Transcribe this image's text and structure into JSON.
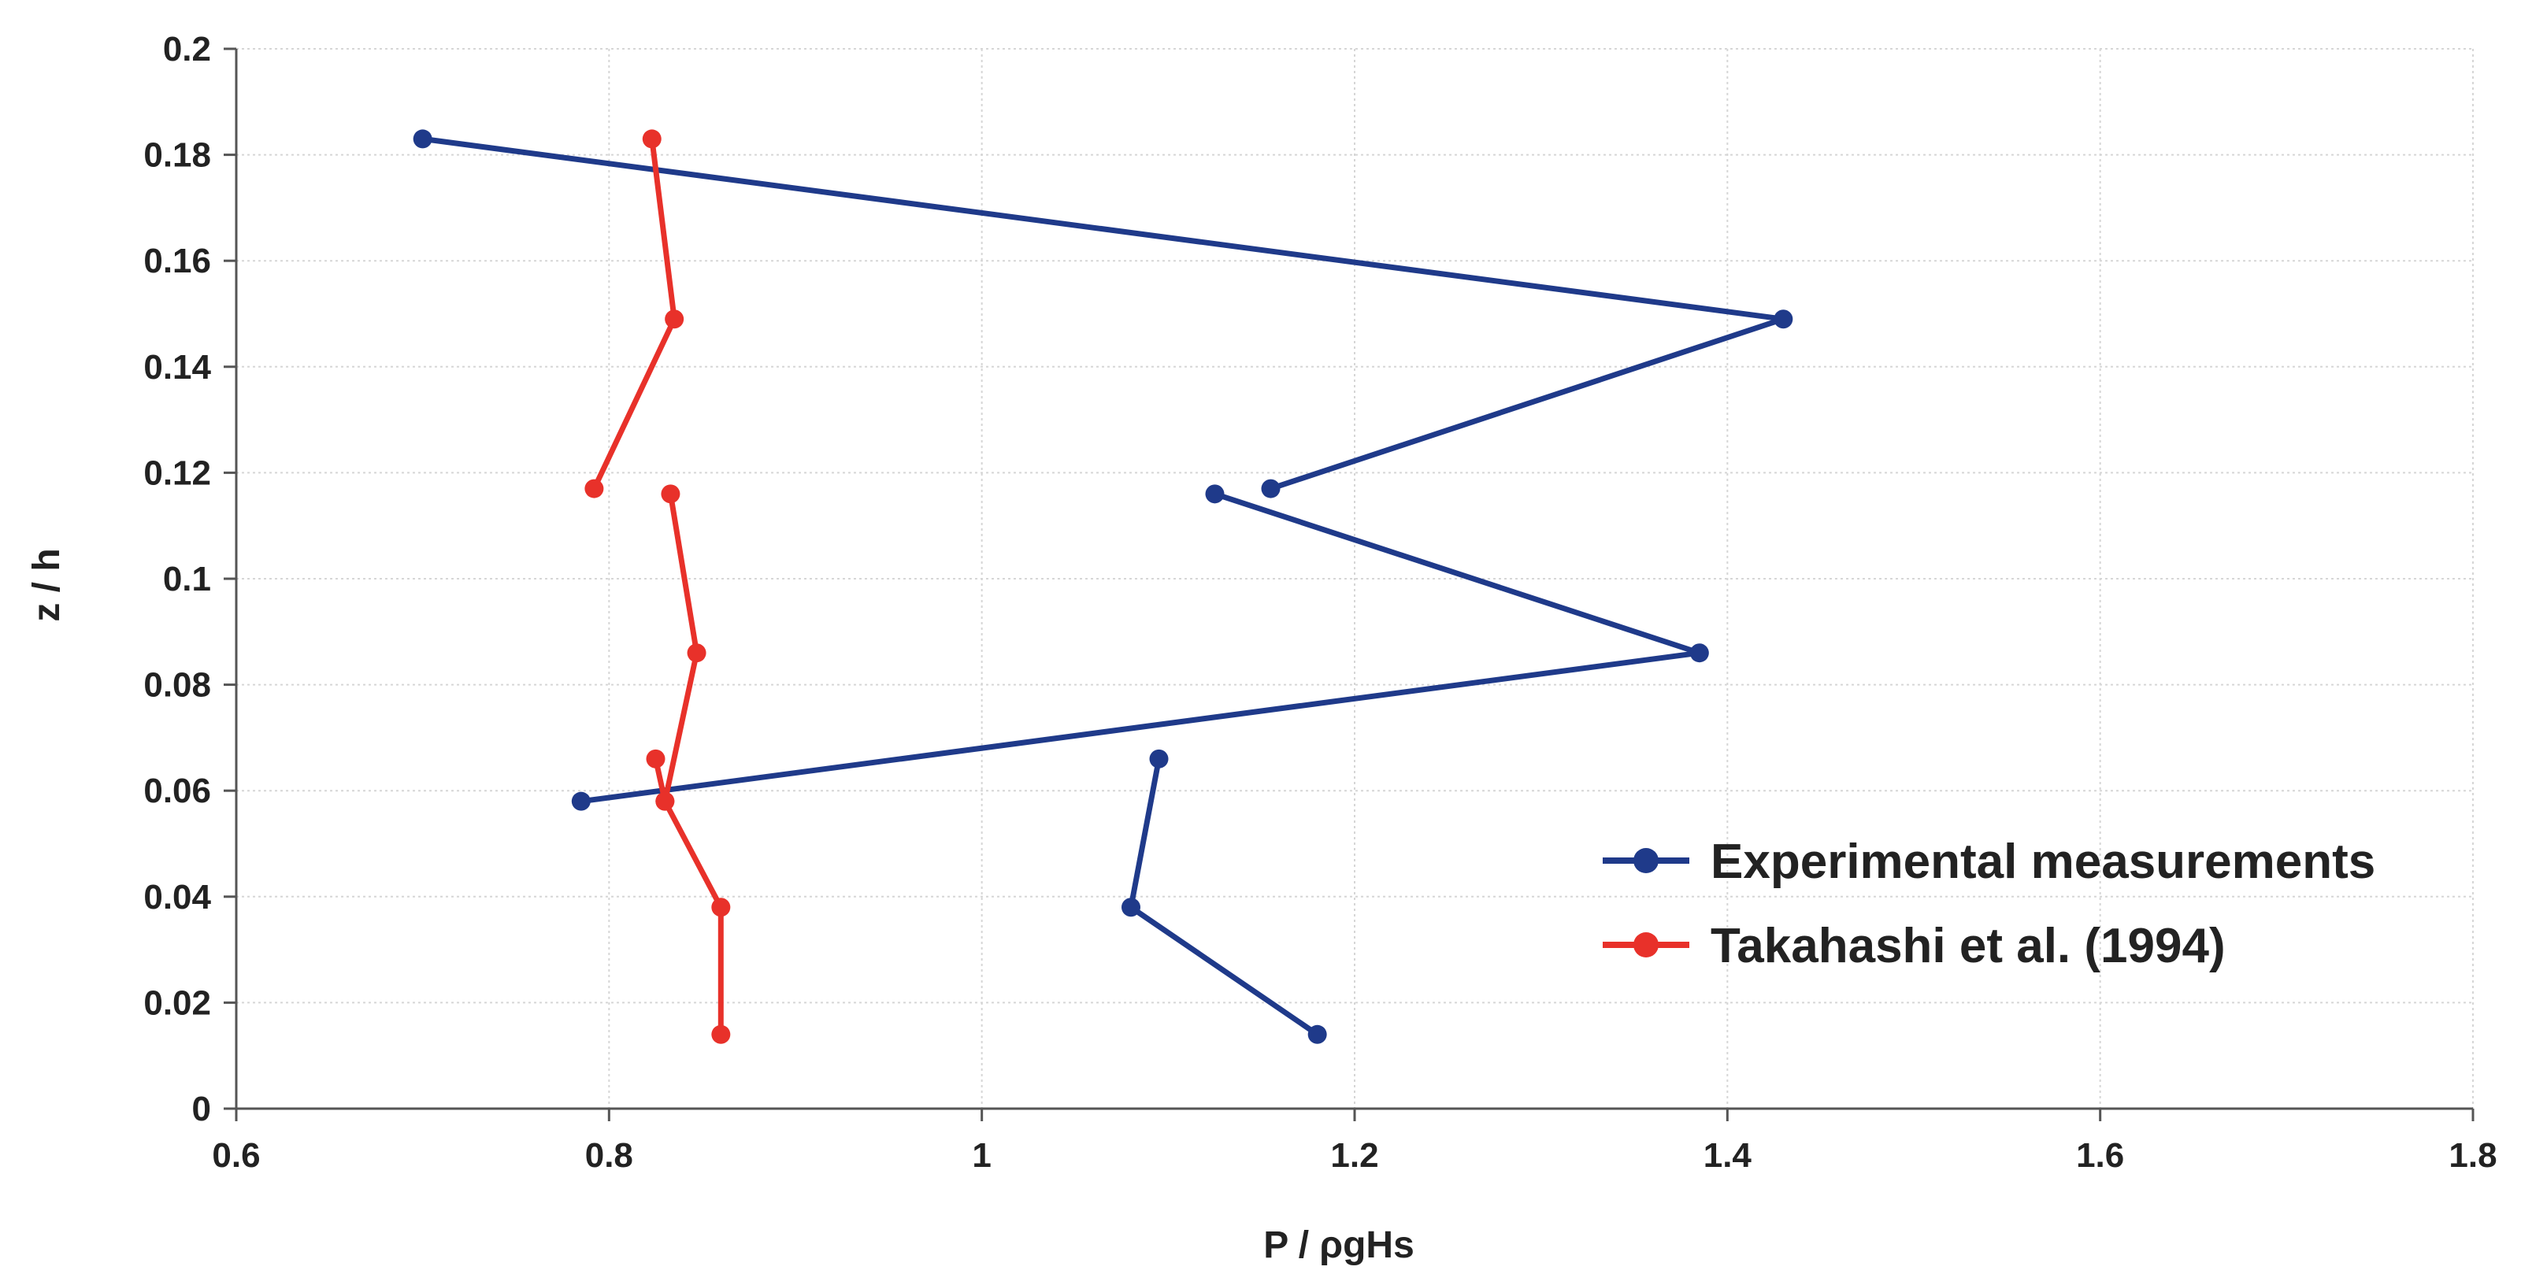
{
  "chart_data": {
    "type": "line",
    "title": "",
    "xlabel": "P / ρgHs",
    "ylabel": "z / h",
    "xlim": [
      0.6,
      1.8
    ],
    "ylim": [
      0,
      0.2
    ],
    "x_ticks": [
      "0.6",
      "0.8",
      "1",
      "1.2",
      "1.4",
      "1.6",
      "1.8"
    ],
    "y_ticks": [
      "0",
      "0.02",
      "0.04",
      "0.06",
      "0.08",
      "0.1",
      "0.12",
      "0.14",
      "0.16",
      "0.18",
      "0.2"
    ],
    "grid": true,
    "legend_position": "right",
    "series": [
      {
        "name": "Experimental measurements",
        "color": "#1f3a8a",
        "segments": [
          [
            {
              "x": 0.7,
              "y": 0.183
            },
            {
              "x": 1.43,
              "y": 0.149
            },
            {
              "x": 1.155,
              "y": 0.117
            }
          ],
          [
            {
              "x": 1.125,
              "y": 0.116
            },
            {
              "x": 1.385,
              "y": 0.086
            },
            {
              "x": 0.785,
              "y": 0.058
            }
          ],
          [
            {
              "x": 1.095,
              "y": 0.066
            },
            {
              "x": 1.08,
              "y": 0.038
            },
            {
              "x": 1.18,
              "y": 0.014
            }
          ]
        ]
      },
      {
        "name": "Takahashi et al. (1994)",
        "color": "#e8312a",
        "segments": [
          [
            {
              "x": 0.823,
              "y": 0.183
            },
            {
              "x": 0.835,
              "y": 0.149
            },
            {
              "x": 0.792,
              "y": 0.117
            }
          ],
          [
            {
              "x": 0.833,
              "y": 0.116
            },
            {
              "x": 0.847,
              "y": 0.086
            },
            {
              "x": 0.83,
              "y": 0.058
            }
          ],
          [
            {
              "x": 0.825,
              "y": 0.066
            },
            {
              "x": 0.83,
              "y": 0.058
            },
            {
              "x": 0.86,
              "y": 0.038
            },
            {
              "x": 0.86,
              "y": 0.014
            }
          ]
        ]
      }
    ]
  }
}
